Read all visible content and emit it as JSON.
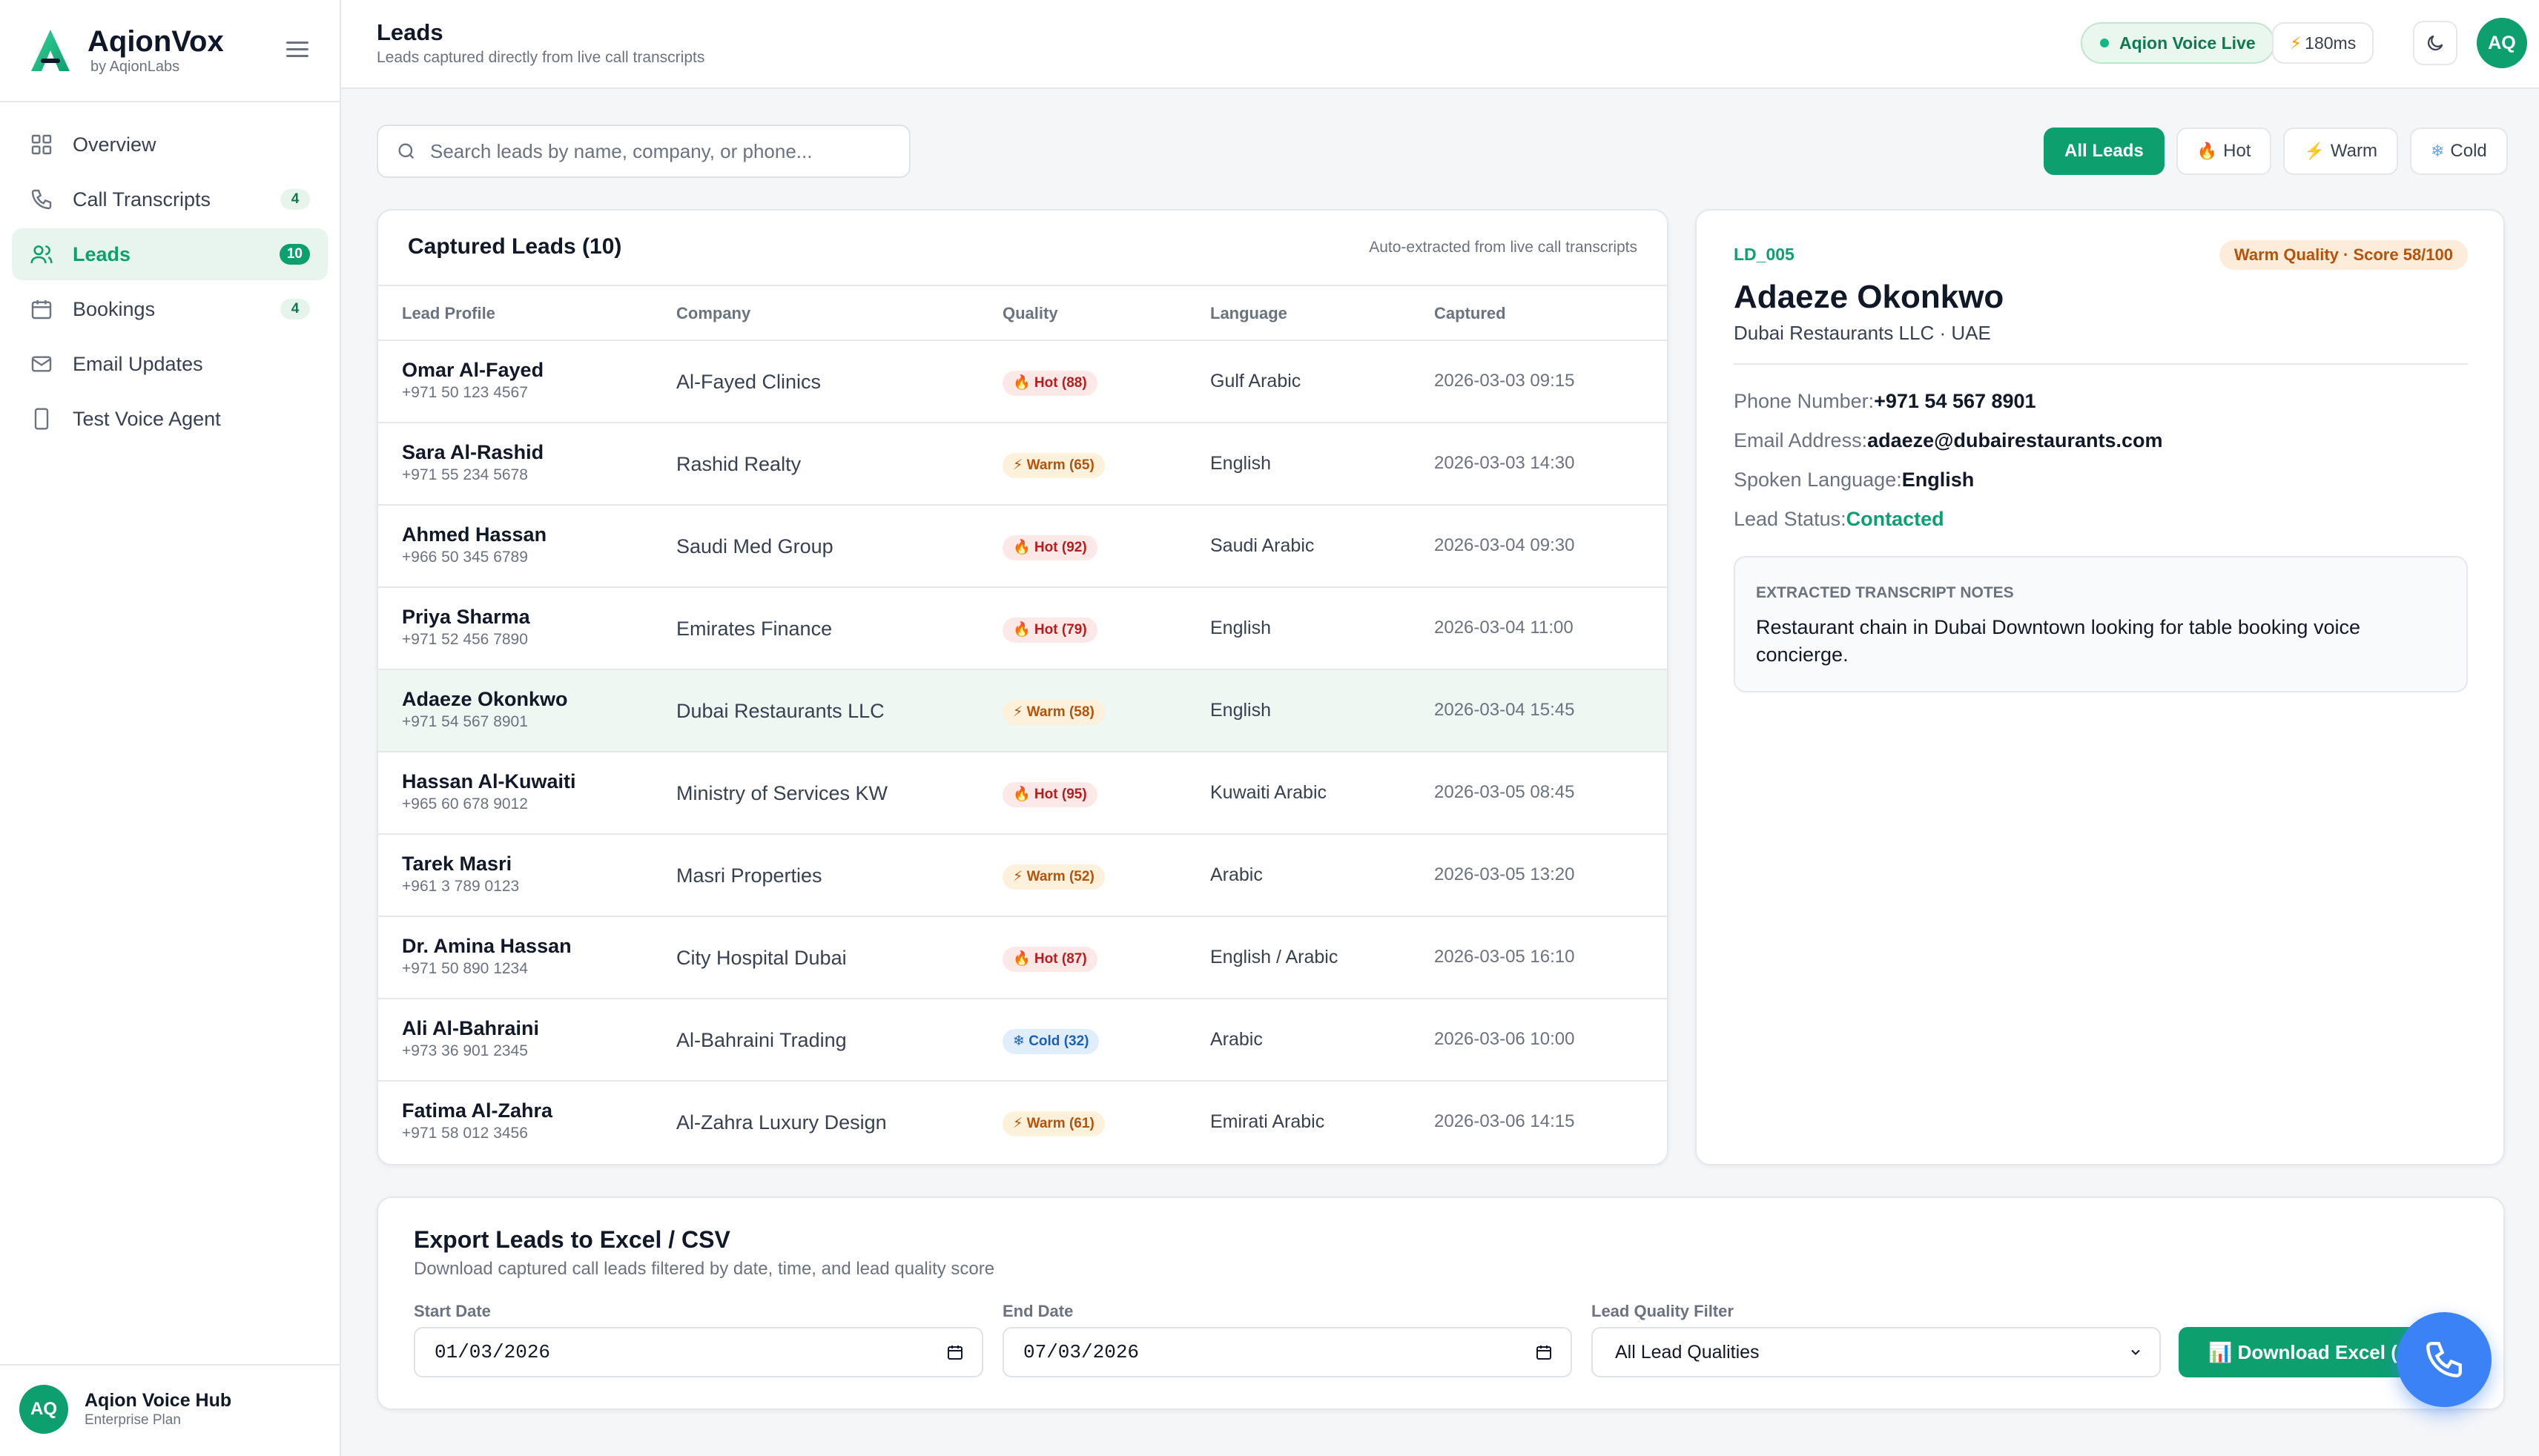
{
  "brand": {
    "name": "AqionVox",
    "sub": "by AqionLabs",
    "accent": "#0e9f6e"
  },
  "sidebar": {
    "items": [
      {
        "label": "Overview",
        "icon": "grid-icon",
        "badge": null
      },
      {
        "label": "Call Transcripts",
        "icon": "phone-icon",
        "badge": "4"
      },
      {
        "label": "Leads",
        "icon": "users-icon",
        "badge": "10",
        "active": true
      },
      {
        "label": "Bookings",
        "icon": "calendar-icon",
        "badge": "4"
      },
      {
        "label": "Email Updates",
        "icon": "mail-icon",
        "badge": null
      },
      {
        "label": "Test Voice Agent",
        "icon": "mobile-icon",
        "badge": null
      }
    ],
    "account": {
      "initials": "AQ",
      "name": "Aqion Voice Hub",
      "plan": "Enterprise Plan"
    }
  },
  "header": {
    "title": "Leads",
    "subtitle": "Leads captured directly from live call transcripts",
    "live_label": "Aqion Voice Live",
    "latency": "180ms",
    "avatar": "AQ"
  },
  "search": {
    "placeholder": "Search leads by name, company, or phone...",
    "value": ""
  },
  "filters": [
    {
      "label": "All Leads",
      "icon": "",
      "active": true
    },
    {
      "label": "Hot",
      "icon": "🔥"
    },
    {
      "label": "Warm",
      "icon": "⚡"
    },
    {
      "label": "Cold",
      "icon": "❄"
    }
  ],
  "leads": {
    "title": "Captured Leads (10)",
    "note": "Auto-extracted from live call transcripts",
    "columns": [
      "Lead Profile",
      "Company",
      "Quality",
      "Language",
      "Captured"
    ],
    "rows": [
      {
        "name": "Omar Al-Fayed",
        "phone": "+971 50 123 4567",
        "company": "Al-Fayed Clinics",
        "quality": "🔥 Hot (88)",
        "tier": "hot",
        "language": "Gulf Arabic",
        "captured": "2026-03-03 09:15"
      },
      {
        "name": "Sara Al-Rashid",
        "phone": "+971 55 234 5678",
        "company": "Rashid Realty",
        "quality": "⚡ Warm (65)",
        "tier": "warm",
        "language": "English",
        "captured": "2026-03-03 14:30"
      },
      {
        "name": "Ahmed Hassan",
        "phone": "+966 50 345 6789",
        "company": "Saudi Med Group",
        "quality": "🔥 Hot (92)",
        "tier": "hot",
        "language": "Saudi Arabic",
        "captured": "2026-03-04 09:30"
      },
      {
        "name": "Priya Sharma",
        "phone": "+971 52 456 7890",
        "company": "Emirates Finance",
        "quality": "🔥 Hot (79)",
        "tier": "hot",
        "language": "English",
        "captured": "2026-03-04 11:00"
      },
      {
        "name": "Adaeze Okonkwo",
        "phone": "+971 54 567 8901",
        "company": "Dubai Restaurants LLC",
        "quality": "⚡ Warm (58)",
        "tier": "warm",
        "language": "English",
        "captured": "2026-03-04 15:45",
        "selected": true
      },
      {
        "name": "Hassan Al-Kuwaiti",
        "phone": "+965 60 678 9012",
        "company": "Ministry of Services KW",
        "quality": "🔥 Hot (95)",
        "tier": "hot",
        "language": "Kuwaiti Arabic",
        "captured": "2026-03-05 08:45"
      },
      {
        "name": "Tarek Masri",
        "phone": "+961 3 789 0123",
        "company": "Masri Properties",
        "quality": "⚡ Warm (52)",
        "tier": "warm",
        "language": "Arabic",
        "captured": "2026-03-05 13:20"
      },
      {
        "name": "Dr. Amina Hassan",
        "phone": "+971 50 890 1234",
        "company": "City Hospital Dubai",
        "quality": "🔥 Hot (87)",
        "tier": "hot",
        "language": "English / Arabic",
        "captured": "2026-03-05 16:10"
      },
      {
        "name": "Ali Al-Bahraini",
        "phone": "+973 36 901 2345",
        "company": "Al-Bahraini Trading",
        "quality": "❄ Cold (32)",
        "tier": "cold",
        "language": "Arabic",
        "captured": "2026-03-06 10:00"
      },
      {
        "name": "Fatima Al-Zahra",
        "phone": "+971 58 012 3456",
        "company": "Al-Zahra Luxury Design",
        "quality": "⚡ Warm (61)",
        "tier": "warm",
        "language": "Emirati Arabic",
        "captured": "2026-03-06 14:15"
      }
    ]
  },
  "detail": {
    "id": "LD_005",
    "quality_badge": "Warm Quality · Score 58/100",
    "name": "Adaeze Okonkwo",
    "company_line": "Dubai Restaurants LLC · UAE",
    "phone_label": "Phone Number:",
    "phone": "+971 54 567 8901",
    "email_label": "Email Address:",
    "email": "adaeze@dubairestaurants.com",
    "language_label": "Spoken Language:",
    "language": "English",
    "status_label": "Lead Status:",
    "status": "Contacted",
    "notes_title": "EXTRACTED TRANSCRIPT NOTES",
    "notes": "Restaurant chain in Dubai Downtown looking for table booking voice concierge."
  },
  "export": {
    "title": "Export Leads to Excel / CSV",
    "subtitle": "Download captured call leads filtered by date, time, and lead quality score",
    "start_label": "Start Date",
    "start_value": "01/03/2026",
    "end_label": "End Date",
    "end_value": "07/03/2026",
    "filter_label": "Lead Quality Filter",
    "filter_value": "All Lead Qualities",
    "download_label": "📊 Download Excel (.xlsx)"
  }
}
